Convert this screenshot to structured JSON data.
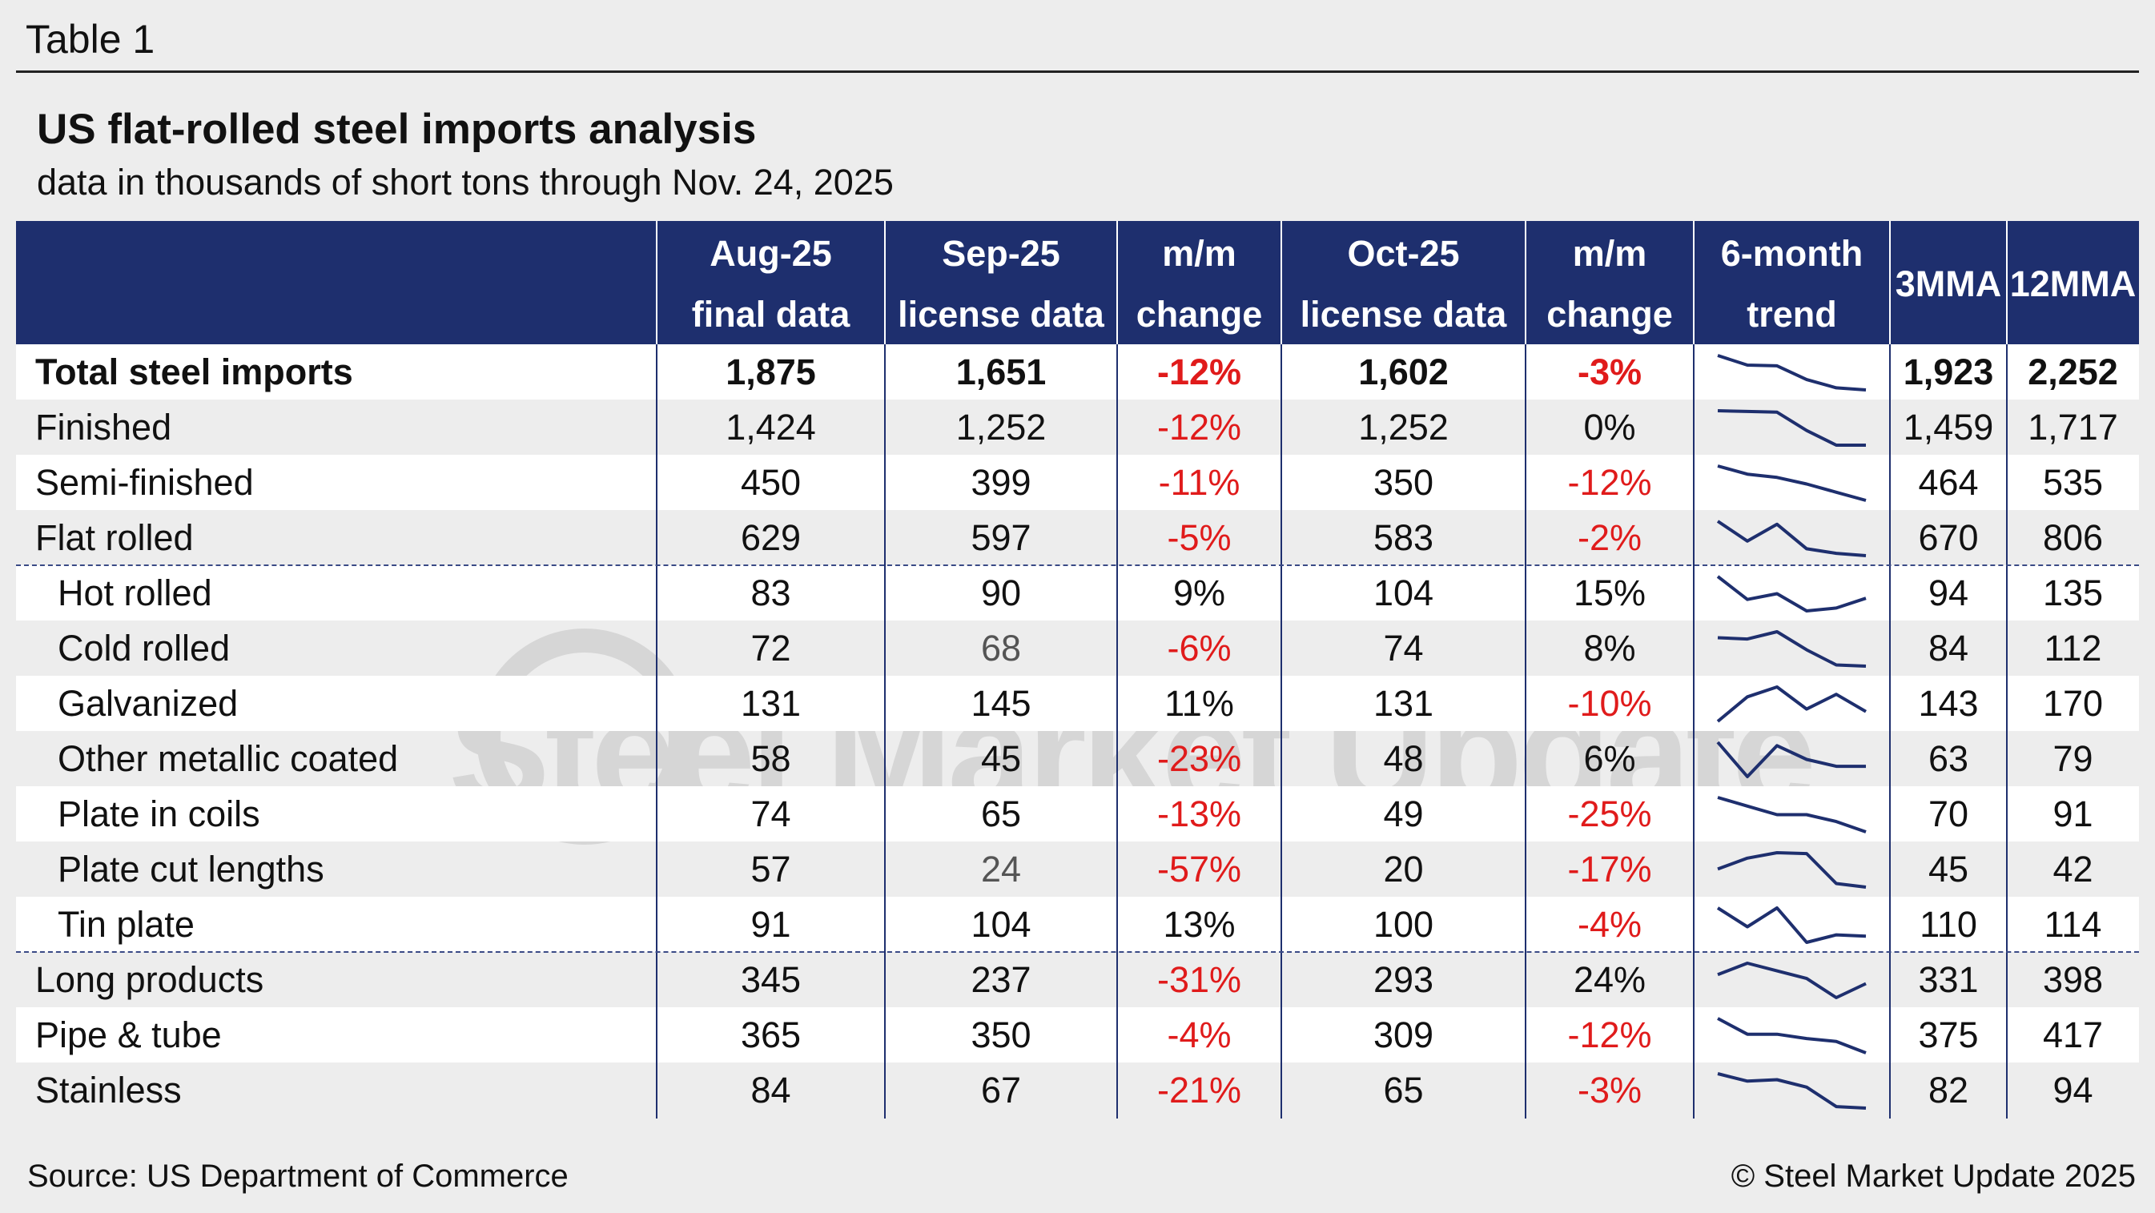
{
  "table_label": "Table 1",
  "title": "US flat-rolled steel imports analysis",
  "subtitle": "data in thousands of short tons through Nov. 24, 2025",
  "source": "Source: US Department of Commerce",
  "copyright": "© Steel Market Update 2025",
  "watermark_text": "Steel Market Update",
  "colors": {
    "header_bg": "#1e2f6e",
    "negative": "#e01b1b",
    "trend_line": "#1e2f6e"
  },
  "columns": [
    {
      "l1": "Aug-25",
      "l2": "final data"
    },
    {
      "l1": "Sep-25",
      "l2": "license data"
    },
    {
      "l1": "m/m",
      "l2": "change"
    },
    {
      "l1": "Oct-25",
      "l2": "license data"
    },
    {
      "l1": "m/m",
      "l2": "change"
    },
    {
      "l1": "6-month",
      "l2": "trend"
    },
    {
      "l1": "3MMA",
      "l2": ""
    },
    {
      "l1": "12MMA",
      "l2": ""
    }
  ],
  "chart_data": {
    "type": "table",
    "title": "US flat-rolled steel imports analysis",
    "units": "thousands of short tons",
    "rows": [
      {
        "label": "Total steel imports",
        "aug": "1,875",
        "sep": "1,651",
        "mm1": "-12%",
        "oct": "1,602",
        "mm2": "-3%",
        "mma3": "1,923",
        "mma12": "2,252",
        "trend": [
          2150,
          2010,
          2000,
          1800,
          1680,
          1650
        ]
      },
      {
        "label": "Finished",
        "aug": "1,424",
        "sep": "1,252",
        "mm1": "-12%",
        "oct": "1,252",
        "mm2": "0%",
        "mma3": "1,459",
        "mma12": "1,717",
        "trend": [
          1720,
          1710,
          1700,
          1450,
          1250,
          1250
        ]
      },
      {
        "label": "Semi-finished",
        "aug": "450",
        "sep": "399",
        "mm1": "-11%",
        "oct": "350",
        "mm2": "-12%",
        "mma3": "464",
        "mma12": "535",
        "trend": [
          560,
          510,
          490,
          450,
          400,
          350
        ]
      },
      {
        "label": "Flat rolled",
        "aug": "629",
        "sep": "597",
        "mm1": "-5%",
        "oct": "583",
        "mm2": "-2%",
        "mma3": "670",
        "mma12": "806",
        "trend": [
          820,
          690,
          800,
          640,
          610,
          595
        ]
      },
      {
        "label": "Hot rolled",
        "aug": "83",
        "sep": "90",
        "mm1": "9%",
        "oct": "104",
        "mm2": "15%",
        "mma3": "94",
        "mma12": "135",
        "trend": [
          150,
          110,
          120,
          90,
          95,
          112
        ]
      },
      {
        "label": "Cold rolled",
        "aug": "72",
        "sep": "68",
        "mm1": "-6%",
        "oct": "74",
        "mm2": "8%",
        "mma3": "84",
        "mma12": "112",
        "trend": [
          115,
          113,
          125,
          95,
          70,
          68
        ]
      },
      {
        "label": "Galvanized",
        "aug": "131",
        "sep": "145",
        "mm1": "11%",
        "oct": "131",
        "mm2": "-10%",
        "mma3": "143",
        "mma12": "170",
        "trend": [
          100,
          150,
          170,
          125,
          155,
          120
        ]
      },
      {
        "label": "Other metallic coated",
        "aug": "58",
        "sep": "45",
        "mm1": "-23%",
        "oct": "48",
        "mm2": "6%",
        "mma3": "63",
        "mma12": "79",
        "trend": [
          95,
          45,
          90,
          70,
          60,
          60
        ]
      },
      {
        "label": "Plate in coils",
        "aug": "74",
        "sep": "65",
        "mm1": "-13%",
        "oct": "49",
        "mm2": "-25%",
        "mma3": "70",
        "mma12": "91",
        "trend": [
          100,
          90,
          80,
          80,
          72,
          60
        ]
      },
      {
        "label": "Plate cut lengths",
        "aug": "57",
        "sep": "24",
        "mm1": "-57%",
        "oct": "20",
        "mm2": "-17%",
        "mma3": "45",
        "mma12": "42",
        "trend": [
          40,
          52,
          58,
          57,
          24,
          20
        ]
      },
      {
        "label": "Tin plate",
        "aug": "91",
        "sep": "104",
        "mm1": "13%",
        "oct": "100",
        "mm2": "-4%",
        "mma3": "110",
        "mma12": "114",
        "trend": [
          125,
          95,
          125,
          70,
          82,
          80
        ]
      },
      {
        "label": "Long products",
        "aug": "345",
        "sep": "237",
        "mm1": "-31%",
        "oct": "293",
        "mm2": "24%",
        "mma3": "331",
        "mma12": "398",
        "trend": [
          330,
          375,
          345,
          315,
          240,
          295
        ]
      },
      {
        "label": "Pipe & tube",
        "aug": "365",
        "sep": "350",
        "mm1": "-4%",
        "oct": "309",
        "mm2": "-12%",
        "mma3": "375",
        "mma12": "417",
        "trend": [
          430,
          375,
          375,
          360,
          350,
          310
        ]
      },
      {
        "label": "Stainless",
        "aug": "84",
        "sep": "67",
        "mm1": "-21%",
        "oct": "65",
        "mm2": "-3%",
        "mma3": "82",
        "mma12": "94",
        "trend": [
          110,
          100,
          102,
          92,
          66,
          64
        ]
      }
    ]
  }
}
